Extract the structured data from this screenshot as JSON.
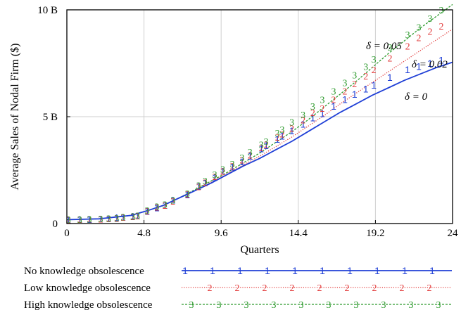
{
  "chart_data": {
    "type": "line",
    "xlabel": "Quarters",
    "ylabel": "Average Sales of Nodal Firm ($)",
    "xlim": [
      0,
      24
    ],
    "ylim": [
      0,
      10
    ],
    "x_ticks": [
      0,
      4.8,
      9.6,
      14.4,
      19.2,
      24
    ],
    "x_tick_labels": [
      "0",
      "4.8",
      "9.6",
      "14.4",
      "19.2",
      "24"
    ],
    "y_ticks": [
      0,
      5,
      10
    ],
    "y_tick_labels": [
      "0",
      "5 B",
      "10 B"
    ],
    "y_unit": "billions of dollars",
    "grid": true,
    "legend_placement": "bottom",
    "marker_x": [
      0.1,
      0.8,
      1.4,
      2.1,
      2.6,
      3.1,
      3.5,
      4.1,
      4.4,
      5.0,
      5.6,
      6.1,
      6.6,
      7.5,
      8.2,
      8.6,
      9.2,
      9.7,
      10.3,
      10.9,
      11.4,
      12.1,
      12.4,
      13.1,
      13.4,
      14.0,
      14.7,
      15.3,
      15.9,
      16.6,
      17.3,
      17.9,
      18.6,
      19.1,
      20.1,
      21.2,
      21.9,
      22.6,
      23.3
    ],
    "series": [
      {
        "name": "No knowledge obsolescence",
        "marker": "1",
        "color": "#1f3fd6",
        "line_style": "solid",
        "curve_label": "δ = 0",
        "x": [
          0,
          2,
          4,
          5,
          6,
          7,
          8,
          9,
          10,
          11,
          12,
          13,
          14,
          15,
          16,
          17,
          18,
          19,
          20,
          21,
          22,
          23,
          24
        ],
        "y": [
          0.18,
          0.22,
          0.38,
          0.6,
          0.85,
          1.2,
          1.55,
          1.9,
          2.3,
          2.7,
          3.05,
          3.45,
          3.85,
          4.3,
          4.75,
          5.2,
          5.6,
          6.0,
          6.35,
          6.7,
          7.0,
          7.3,
          7.55
        ],
        "marker_y": [
          0.18,
          0.2,
          0.2,
          0.21,
          0.23,
          0.28,
          0.3,
          0.34,
          0.36,
          0.58,
          0.74,
          0.85,
          1.1,
          1.35,
          1.75,
          1.9,
          2.15,
          2.45,
          2.65,
          2.9,
          3.15,
          3.5,
          3.65,
          3.95,
          4.1,
          4.35,
          4.65,
          4.95,
          5.15,
          5.5,
          5.8,
          6.05,
          6.3,
          6.48,
          6.85,
          7.2,
          7.35,
          7.5,
          7.65
        ]
      },
      {
        "name": "Low knowledge obsolescence",
        "marker": "2",
        "color": "#e23b3b",
        "line_style": "dotted",
        "curve_label": "δ = 0.02",
        "x": [
          0,
          2,
          4,
          5,
          6,
          7,
          8,
          9,
          10,
          11,
          12,
          13,
          14,
          15,
          16,
          17,
          18,
          19,
          20,
          21,
          22,
          23,
          24
        ],
        "y": [
          0.18,
          0.22,
          0.38,
          0.6,
          0.85,
          1.2,
          1.55,
          1.95,
          2.35,
          2.75,
          3.15,
          3.6,
          4.05,
          4.55,
          5.05,
          5.6,
          6.1,
          6.6,
          7.1,
          7.6,
          8.1,
          8.6,
          9.1
        ],
        "marker_y": [
          0.18,
          0.2,
          0.21,
          0.22,
          0.23,
          0.25,
          0.3,
          0.33,
          0.36,
          0.6,
          0.78,
          0.86,
          1.05,
          1.38,
          1.72,
          1.92,
          2.2,
          2.45,
          2.7,
          2.98,
          3.2,
          3.55,
          3.7,
          4.05,
          4.2,
          4.45,
          4.85,
          5.2,
          5.4,
          5.8,
          6.2,
          6.55,
          6.9,
          7.2,
          7.75,
          8.3,
          8.7,
          9.0,
          9.25
        ]
      },
      {
        "name": "High knowledge obsolescence",
        "marker": "3",
        "color": "#2f9b2f",
        "line_style": "dashed",
        "curve_label": "δ = 0.05",
        "x": [
          0,
          2,
          4,
          5,
          6,
          7,
          8,
          9,
          10,
          11,
          12,
          13,
          14,
          15,
          16,
          17,
          18,
          19,
          20,
          21,
          22,
          23,
          24
        ],
        "y": [
          0.18,
          0.22,
          0.38,
          0.6,
          0.85,
          1.2,
          1.6,
          2.0,
          2.4,
          2.85,
          3.3,
          3.8,
          4.3,
          4.85,
          5.45,
          6.05,
          6.65,
          7.3,
          7.95,
          8.55,
          9.15,
          9.7,
          10.25
        ],
        "marker_y": [
          0.19,
          0.2,
          0.21,
          0.23,
          0.24,
          0.27,
          0.31,
          0.34,
          0.38,
          0.62,
          0.8,
          0.9,
          1.1,
          1.42,
          1.8,
          2.0,
          2.3,
          2.55,
          2.8,
          3.1,
          3.35,
          3.7,
          3.85,
          4.25,
          4.4,
          4.75,
          5.1,
          5.5,
          5.8,
          6.2,
          6.6,
          6.95,
          7.35,
          7.7,
          8.25,
          8.85,
          9.2,
          9.6,
          10.0
        ]
      }
    ]
  }
}
